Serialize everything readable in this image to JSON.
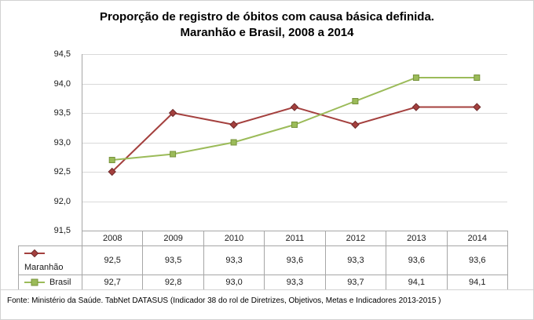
{
  "title": {
    "line1": "Proporção de registro de óbitos com causa básica definida.",
    "line2": "Maranhão e Brasil, 2008 a 2014"
  },
  "chart_data": {
    "type": "line",
    "categories": [
      "2008",
      "2009",
      "2010",
      "2011",
      "2012",
      "2013",
      "2014"
    ],
    "series": [
      {
        "id": "maranhao",
        "name": "Maranhão",
        "values": [
          92.5,
          93.5,
          93.3,
          93.6,
          93.3,
          93.6,
          93.6
        ],
        "display_values": [
          "92,5",
          "93,5",
          "93,3",
          "93,6",
          "93,3",
          "93,6",
          "93,6"
        ],
        "color": "#A4403E",
        "marker": "diamond",
        "marker_border": "#6F2B2C"
      },
      {
        "id": "brasil",
        "name": "Brasil",
        "values": [
          92.7,
          92.8,
          93.0,
          93.3,
          93.7,
          94.1,
          94.1
        ],
        "display_values": [
          "92,7",
          "92,8",
          "93,0",
          "93,3",
          "93,7",
          "94,1",
          "94,1"
        ],
        "color": "#9BBB59",
        "marker": "square",
        "marker_border": "#77933C"
      }
    ],
    "ylim": [
      91.5,
      94.5
    ],
    "ytick_step": 0.5,
    "ytick_labels": [
      "94,5",
      "94,0",
      "93,5",
      "93,0",
      "92,5",
      "92,0",
      "91,5"
    ],
    "grid": true,
    "gridline_color": "#d9d9d9",
    "axis_color": "#a6a6a6",
    "legend_position": "table-left"
  },
  "footer": {
    "source": "Fonte: Ministério da Saúde. TabNet DATASUS (Indicador 38 do rol de Diretrizes, Objetivos, Metas e Indicadores 2013-2015 )"
  }
}
